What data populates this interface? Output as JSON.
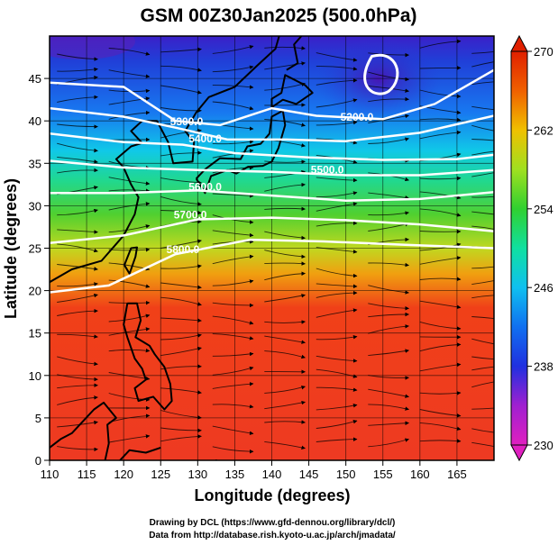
{
  "chart_data": {
    "type": "heatmap",
    "title": "GSM 00Z30Jan2025 (500.0hPa)",
    "xlabel": "Longitude (degrees)",
    "ylabel": "Latitude  (degrees)",
    "xlim": [
      110,
      170
    ],
    "ylim": [
      0,
      50
    ],
    "xticks": [
      "110",
      "115",
      "120",
      "125",
      "130",
      "135",
      "140",
      "145",
      "150",
      "155",
      "160",
      "165"
    ],
    "yticks": [
      "0",
      "5",
      "10",
      "15",
      "20",
      "25",
      "30",
      "35",
      "40",
      "45"
    ],
    "colorbar": {
      "min": 230,
      "max": 270,
      "tick_labels": [
        "270",
        "262",
        "254",
        "246",
        "238",
        "230"
      ],
      "tick_values": [
        270,
        262,
        254,
        246,
        238,
        230
      ]
    },
    "contours": [
      {
        "label": "5200.0",
        "lon": 151.5,
        "lat": 40
      },
      {
        "label": "5300.0",
        "lon": 128.5,
        "lat": 39.5
      },
      {
        "label": "5400.0",
        "lon": 131,
        "lat": 37.5
      },
      {
        "label": "5500.0",
        "lon": 147.5,
        "lat": 33.8
      },
      {
        "label": "5600.0",
        "lon": 131,
        "lat": 31.8
      },
      {
        "label": "5700.0",
        "lon": 129,
        "lat": 28.5
      },
      {
        "label": "5800.0",
        "lon": 128,
        "lat": 24.4
      }
    ],
    "colorscale": [
      {
        "v": 230,
        "c": "#e020c0"
      },
      {
        "v": 234,
        "c": "#a020d0"
      },
      {
        "v": 238,
        "c": "#2030e0"
      },
      {
        "v": 242,
        "c": "#1070f0"
      },
      {
        "v": 246,
        "c": "#10c0f0"
      },
      {
        "v": 250,
        "c": "#10e0a0"
      },
      {
        "v": 254,
        "c": "#30d030"
      },
      {
        "v": 258,
        "c": "#a0e020"
      },
      {
        "v": 262,
        "c": "#f0c000"
      },
      {
        "v": 266,
        "c": "#f06000"
      },
      {
        "v": 270,
        "c": "#e02000"
      }
    ]
  },
  "credits": {
    "line1": "Drawing by DCL (https://www.gfd-dennou.org/library/dcl/)",
    "line2": "Data from http://database.rish.kyoto-u.ac.jp/arch/jmadata/"
  }
}
